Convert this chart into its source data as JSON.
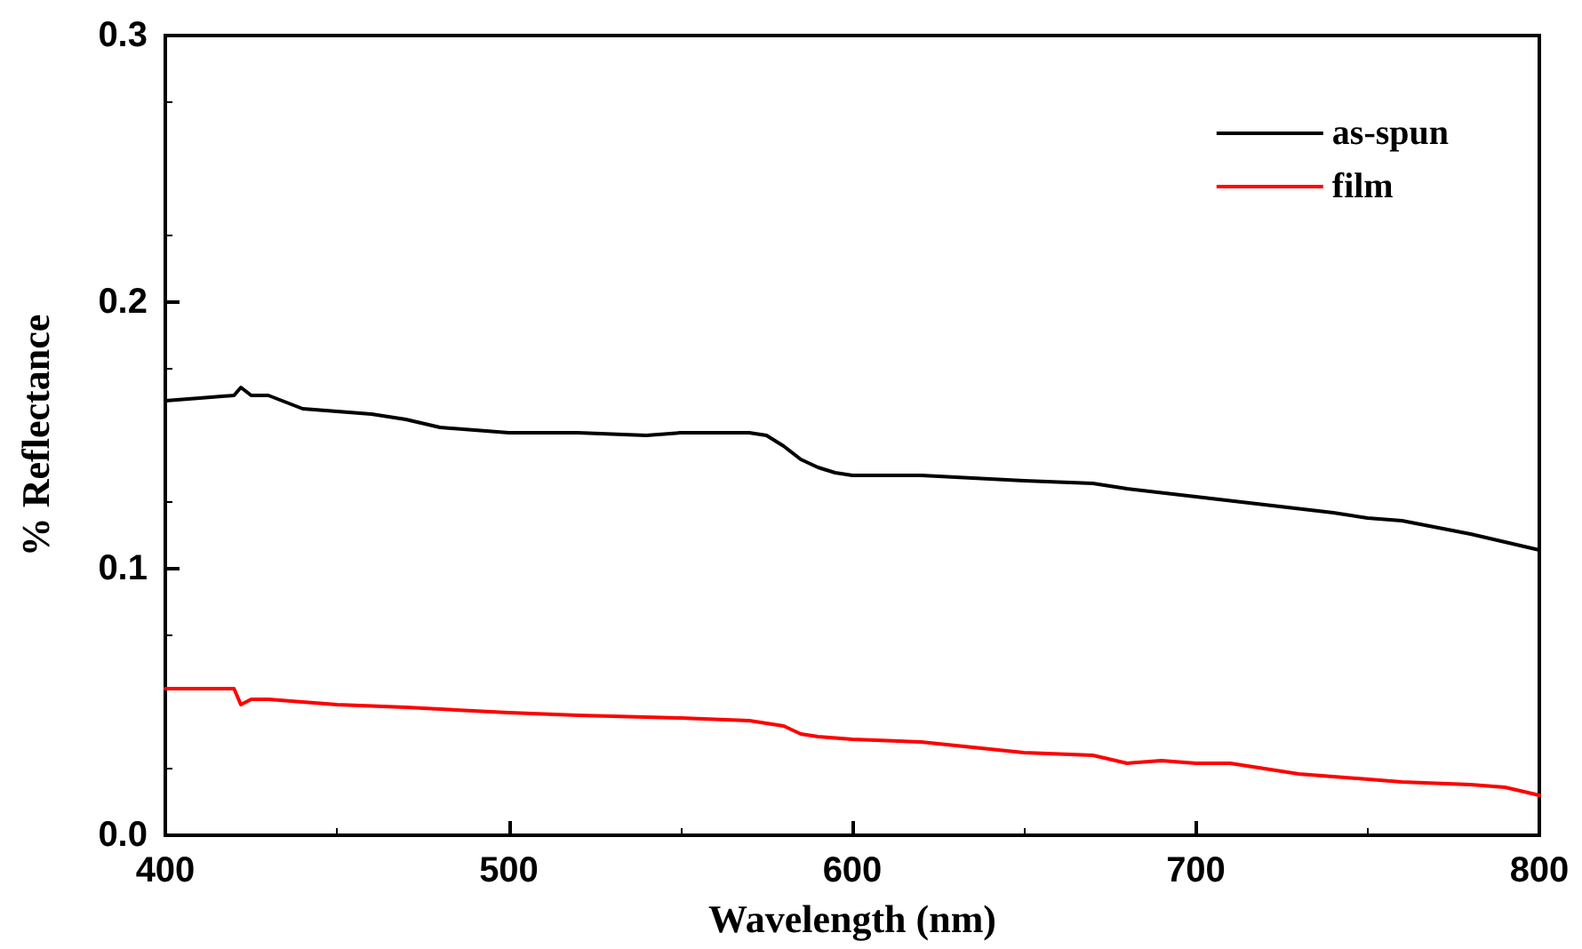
{
  "chart_data": {
    "type": "line",
    "xlabel": "Wavelength (nm)",
    "ylabel": "% Reflectance",
    "xlim": [
      400,
      800
    ],
    "ylim": [
      0,
      0.3
    ],
    "xticks": [
      400,
      500,
      600,
      700,
      800
    ],
    "yticks": [
      {
        "value": 0,
        "label": "0.0"
      },
      0.1,
      0.2,
      0.3
    ],
    "legend": "top right",
    "series": [
      {
        "name": "as-spun",
        "color": "#000000",
        "x": [
          400,
          410,
          420,
          422,
          425,
          430,
          440,
          450,
          460,
          470,
          480,
          490,
          500,
          520,
          540,
          550,
          560,
          570,
          575,
          580,
          585,
          590,
          595,
          600,
          620,
          650,
          670,
          680,
          700,
          720,
          740,
          750,
          760,
          780,
          790,
          800
        ],
        "values": [
          0.163,
          0.164,
          0.165,
          0.168,
          0.165,
          0.165,
          0.16,
          0.159,
          0.158,
          0.156,
          0.153,
          0.152,
          0.151,
          0.151,
          0.15,
          0.151,
          0.151,
          0.151,
          0.15,
          0.146,
          0.141,
          0.138,
          0.136,
          0.135,
          0.135,
          0.133,
          0.132,
          0.13,
          0.127,
          0.124,
          0.121,
          0.119,
          0.118,
          0.113,
          0.11,
          0.107
        ]
      },
      {
        "name": "film",
        "color": "#ff0000",
        "x": [
          400,
          410,
          420,
          422,
          425,
          430,
          450,
          470,
          500,
          520,
          550,
          570,
          575,
          580,
          585,
          590,
          600,
          620,
          650,
          670,
          680,
          690,
          700,
          710,
          720,
          730,
          740,
          760,
          780,
          790,
          800
        ],
        "values": [
          0.055,
          0.055,
          0.055,
          0.049,
          0.051,
          0.051,
          0.049,
          0.048,
          0.046,
          0.045,
          0.044,
          0.043,
          0.042,
          0.041,
          0.038,
          0.037,
          0.036,
          0.035,
          0.031,
          0.03,
          0.027,
          0.028,
          0.027,
          0.027,
          0.025,
          0.023,
          0.022,
          0.02,
          0.019,
          0.018,
          0.015
        ]
      }
    ]
  }
}
